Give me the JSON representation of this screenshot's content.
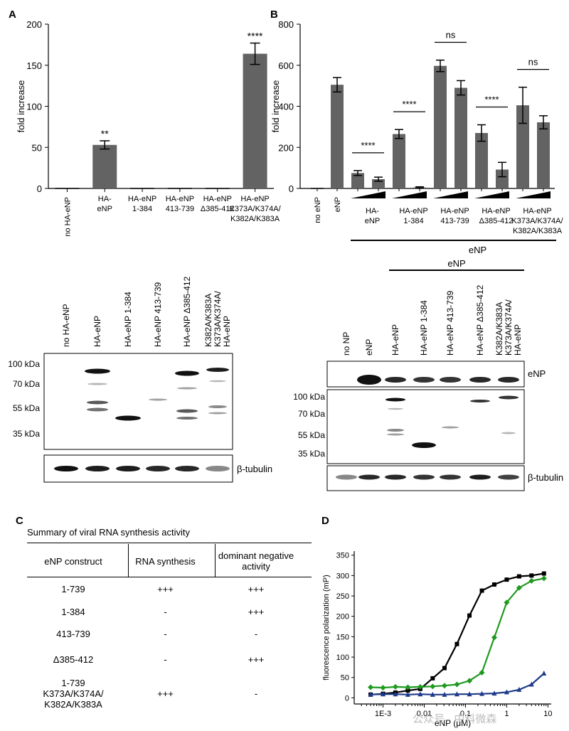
{
  "panel_labels": {
    "a": "A",
    "b": "B",
    "c": "C",
    "d": "D"
  },
  "colors": {
    "bar": "#636363",
    "blot_band": "#111111",
    "curve_wt": "#000000",
    "curve_green": "#1f9a1f",
    "curve_blue": "#1e3a8a"
  },
  "chart_data": [
    {
      "id": "A",
      "type": "bar",
      "ylabel": "fold increase",
      "ylim": [
        0,
        200
      ],
      "yticks": [
        "0",
        "50",
        "100",
        "150",
        "200"
      ],
      "categories": [
        "no HA-eNP",
        "HA-eNP",
        "HA-eNP 1-384",
        "HA-eNP 413-739",
        "HA-eNP Δ385-412",
        "HA-eNP K373A/K374A/K382A/K383A"
      ],
      "tick_label_lines": [
        [
          "no HA-eNP"
        ],
        [
          "HA-",
          "eNP"
        ],
        [
          "HA-eNP",
          "1-384"
        ],
        [
          "HA-eNP",
          "413-739"
        ],
        [
          "HA-eNP",
          "Δ385-412"
        ],
        [
          "HA-eNP",
          "K373A/K374A/",
          "K382A/K383A"
        ]
      ],
      "values": [
        0,
        53,
        0,
        0,
        0,
        164
      ],
      "errors": [
        0,
        5,
        0,
        0,
        0,
        13
      ],
      "annotations": [
        "",
        "**",
        "",
        "",
        "",
        "****"
      ]
    },
    {
      "id": "B",
      "type": "bar",
      "ylabel": "fold increase",
      "ylim": [
        0,
        800
      ],
      "yticks": [
        "0",
        "200",
        "400",
        "600",
        "800"
      ],
      "categories": [
        "no eNP",
        "eNP",
        "HA-eNP low",
        "HA-eNP high",
        "HA-eNP 1-384 low",
        "HA-eNP 1-384 high",
        "HA-eNP 413-739 low",
        "HA-eNP 413-739 high",
        "HA-eNP Δ385-412 low",
        "HA-eNP Δ385-412 high",
        "HA-eNP K373A/K374A/K382A/K383A low",
        "HA-eNP K373A/K374A/K382A/K383A high"
      ],
      "values": [
        0,
        505,
        75,
        45,
        265,
        5,
        597,
        490,
        270,
        92,
        405,
        322
      ],
      "errors": [
        0,
        35,
        12,
        10,
        22,
        3,
        28,
        35,
        40,
        35,
        88,
        32
      ],
      "single_labels": [
        "no eNP",
        "eNP"
      ],
      "group_label_lines": [
        [
          "HA-",
          "eNP"
        ],
        [
          "HA-eNP",
          "1-384"
        ],
        [
          "HA-eNP",
          "413-739"
        ],
        [
          "HA-eNP",
          "Δ385-412"
        ],
        [
          "HA-eNP",
          "K373A/K374A/",
          "K382A/K383A"
        ]
      ],
      "significance": [
        "****",
        "****",
        "ns",
        "****",
        "ns"
      ],
      "bracket_label": "eNP"
    },
    {
      "id": "D",
      "type": "scatter",
      "xlabel": "eNP (μM)",
      "ylabel": "fluorescence polarization (mP)",
      "xscale": "log",
      "xlim": [
        0.0002,
        12
      ],
      "ylim": [
        -15,
        360
      ],
      "yticks": [
        "0",
        "50",
        "100",
        "150",
        "200",
        "250",
        "300",
        "350"
      ],
      "xticks": [
        "1E-3",
        "0.01",
        "0.1",
        "1",
        "10"
      ],
      "series": [
        {
          "color": "#000000",
          "x": [
            0.0005,
            0.001,
            0.002,
            0.004,
            0.008,
            0.016,
            0.031,
            0.062,
            0.125,
            0.25,
            0.5,
            1,
            2,
            4,
            8
          ],
          "y": [
            8,
            10,
            13,
            18,
            22,
            48,
            73,
            132,
            202,
            263,
            278,
            290,
            298,
            300,
            305
          ]
        },
        {
          "color": "#1f9a1f",
          "x": [
            0.0005,
            0.001,
            0.002,
            0.004,
            0.008,
            0.016,
            0.031,
            0.062,
            0.125,
            0.25,
            0.5,
            1,
            2,
            4,
            8
          ],
          "y": [
            26,
            25,
            27,
            26,
            27,
            28,
            30,
            33,
            42,
            62,
            148,
            234,
            270,
            287,
            293
          ]
        },
        {
          "color": "#1e3a8a",
          "x": [
            0.0005,
            0.001,
            0.002,
            0.004,
            0.008,
            0.016,
            0.031,
            0.062,
            0.125,
            0.25,
            0.5,
            1,
            2,
            4,
            8
          ],
          "y": [
            8,
            9,
            9,
            8,
            9,
            8,
            8,
            9,
            9,
            10,
            11,
            14,
            20,
            33,
            60
          ]
        }
      ]
    }
  ],
  "blot_a": {
    "lanes": [
      "no HA-eNP",
      "HA-eNP",
      "HA-eNP 1-384",
      "HA-eNP 413-739",
      "HA-eNP Δ385-412",
      "HA-eNP K373A/K374A/K382A/K383A"
    ],
    "lane_label_lines": [
      [
        "no HA-eNP"
      ],
      [
        "HA-eNP"
      ],
      [
        "HA-eNP 1-384"
      ],
      [
        "HA-eNP 413-739"
      ],
      [
        "HA-eNP Δ385-412"
      ],
      [
        "HA-eNP",
        "K373A/K374A/",
        "K382A/K383A"
      ]
    ],
    "markers": [
      "100 kDa",
      "70 kDa",
      "55 kDa",
      "35 kDa"
    ],
    "loading_label": "β-tubulin"
  },
  "blot_b": {
    "lanes": [
      "no NP",
      "eNP",
      "HA-eNP",
      "HA-eNP 1-384",
      "HA-eNP 413-739",
      "HA-eNP Δ385-412",
      "HA-eNP K373A/K374A/K382A/K383A"
    ],
    "lane_label_lines": [
      [
        "no NP"
      ],
      [
        "eNP"
      ],
      [
        "HA-eNP"
      ],
      [
        "HA-eNP 1-384"
      ],
      [
        "HA-eNP 413-739"
      ],
      [
        "HA-eNP Δ385-412"
      ],
      [
        "HA-eNP",
        "K373A/K374A/",
        "K382A/K383A"
      ]
    ],
    "bracket_label": "eNP",
    "top_label": "eNP",
    "markers": [
      "100 kDa",
      "70 kDa",
      "55 kDa",
      "35 kDa"
    ],
    "loading_label": "β-tubulin"
  },
  "table_c": {
    "title": "Summary of viral RNA synthesis activity",
    "headers": [
      "eNP construct",
      "RNA synthesis",
      "dominant negative activity"
    ],
    "header_lines": [
      [
        "eNP construct"
      ],
      [
        "RNA synthesis"
      ],
      [
        "dominant negative",
        "activity"
      ]
    ],
    "rows": [
      {
        "construct": [
          "1-739"
        ],
        "rna": "+++",
        "dn": "+++"
      },
      {
        "construct": [
          "1-384"
        ],
        "rna": "-",
        "dn": "+++"
      },
      {
        "construct": [
          "413-739"
        ],
        "rna": "-",
        "dn": "-"
      },
      {
        "construct": [
          "Δ385-412"
        ],
        "rna": "-",
        "dn": "+++"
      },
      {
        "construct": [
          "1-739",
          "K373A/K374A/",
          "K382A/K383A"
        ],
        "rna": "+++",
        "dn": "-"
      }
    ]
  },
  "watermark": "公众号 · 中科微森"
}
